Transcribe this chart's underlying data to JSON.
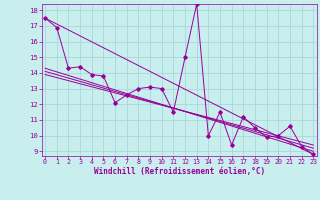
{
  "xlabel": "Windchill (Refroidissement éolien,°C)",
  "background_color": "#c8eeed",
  "grid_color": "#a8d8d8",
  "line_color": "#990099",
  "x_ticks": [
    0,
    1,
    2,
    3,
    4,
    5,
    6,
    7,
    8,
    9,
    10,
    11,
    12,
    13,
    14,
    15,
    16,
    17,
    18,
    19,
    20,
    21,
    22,
    23
  ],
  "y_ticks": [
    9,
    10,
    11,
    12,
    13,
    14,
    15,
    16,
    17,
    18
  ],
  "xlim": [
    -0.3,
    23.3
  ],
  "ylim": [
    8.7,
    18.4
  ],
  "main_series": [
    17.5,
    16.9,
    14.3,
    14.4,
    13.9,
    13.8,
    12.1,
    12.6,
    13.0,
    13.1,
    13.0,
    11.5,
    15.0,
    18.4,
    10.0,
    11.5,
    9.4,
    11.2,
    10.5,
    9.9,
    10.0,
    10.6,
    9.3,
    8.8
  ],
  "trend_lines": [
    {
      "x0": 0,
      "y0": 17.5,
      "x1": 23,
      "y1": 8.8
    },
    {
      "x0": 0,
      "y0": 14.3,
      "x1": 23,
      "y1": 9.0
    },
    {
      "x0": 0,
      "y0": 14.1,
      "x1": 23,
      "y1": 9.2
    },
    {
      "x0": 0,
      "y0": 13.9,
      "x1": 23,
      "y1": 9.4
    }
  ]
}
